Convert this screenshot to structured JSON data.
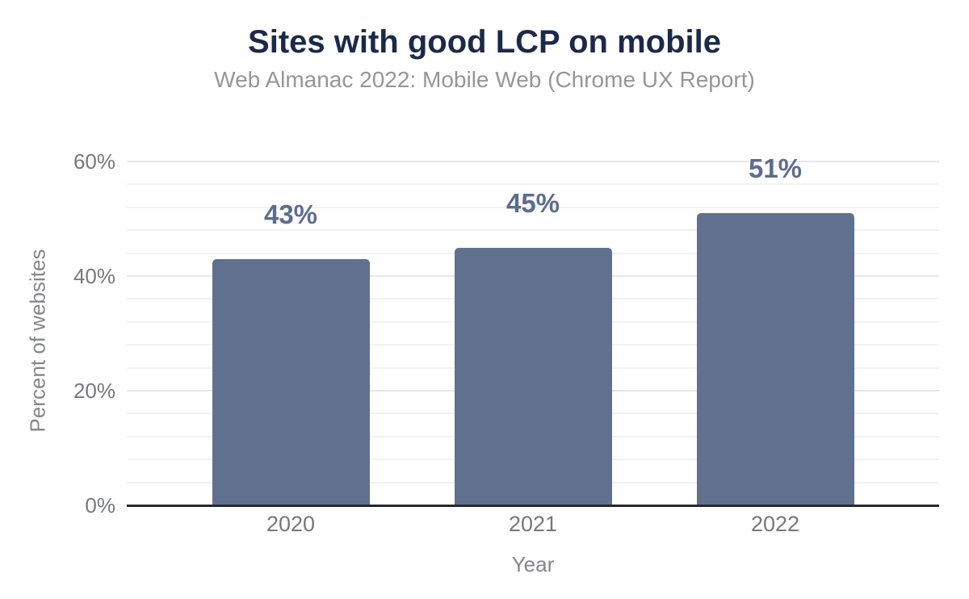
{
  "chart": {
    "title": "Sites with good LCP on mobile",
    "subtitle": "Web Almanac 2022: Mobile Web (Chrome UX Report)",
    "xlabel": "Year",
    "ylabel": "Percent of websites"
  },
  "chart_data": {
    "type": "bar",
    "title": "Sites with good LCP on mobile",
    "subtitle": "Web Almanac 2022: Mobile Web (Chrome UX Report)",
    "categories": [
      "2020",
      "2021",
      "2022"
    ],
    "values": [
      43,
      45,
      51
    ],
    "data_labels": [
      "43%",
      "45%",
      "51%"
    ],
    "xlabel": "Year",
    "ylabel": "Percent of websites",
    "ylim": [
      0,
      60
    ],
    "yticks": [
      0,
      20,
      40,
      60
    ],
    "ytick_labels": [
      "0%",
      "20%",
      "40%",
      "60%"
    ],
    "minor_grid_step": 4,
    "grid": "horizontal-only",
    "legend": "none",
    "colors": {
      "background": "#ffffff",
      "bar": "#5f718e",
      "data_label": "#5c6d8e",
      "title": "#1b2a4a",
      "subtitle": "#96969a",
      "tick_label": "#77787a",
      "axis_title": "#85868a",
      "axis_line": "#27282b",
      "gridline_major": "#e7e7e7",
      "gridline_minor": "#f2f2f2"
    }
  }
}
